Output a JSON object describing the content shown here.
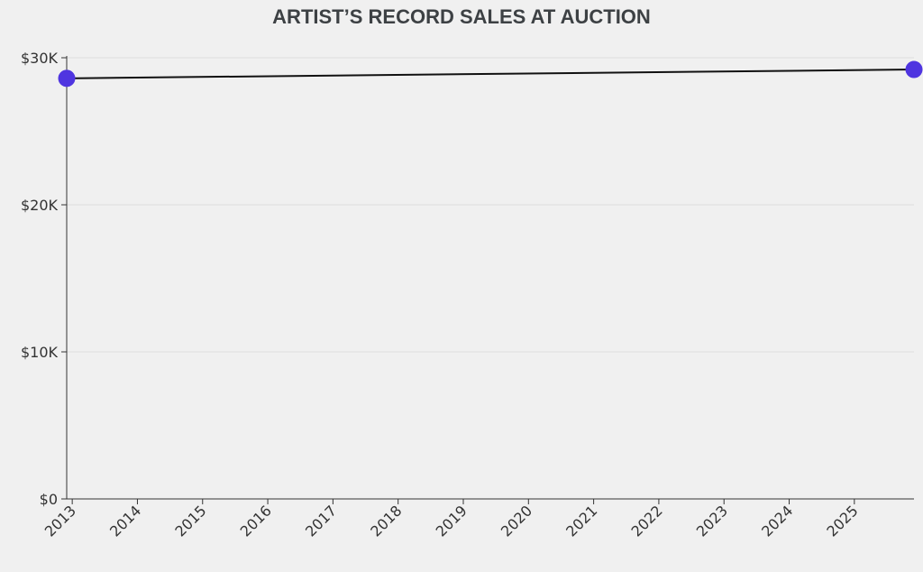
{
  "chart_data": {
    "type": "line",
    "title": "ARTIST’S RECORD SALES AT AUCTION",
    "xlabel": "",
    "ylabel": "",
    "x_ticks": [
      "2013",
      "2014",
      "2015",
      "2016",
      "2017",
      "2018",
      "2019",
      "2020",
      "2021",
      "2022",
      "2023",
      "2024",
      "2025"
    ],
    "y_ticks": [
      {
        "value": 0,
        "label": "$0"
      },
      {
        "value": 10000,
        "label": "$10K"
      },
      {
        "value": 20000,
        "label": "$20K"
      },
      {
        "value": 30000,
        "label": "$30K"
      }
    ],
    "xlim": [
      "2013",
      "2026"
    ],
    "ylim": [
      0,
      30000
    ],
    "grid": "horizontal",
    "series": [
      {
        "color": "#4f35e0",
        "points": [
          {
            "x": "2013",
            "y": 28600
          },
          {
            "x": "2026",
            "y": 29200
          }
        ]
      }
    ]
  }
}
